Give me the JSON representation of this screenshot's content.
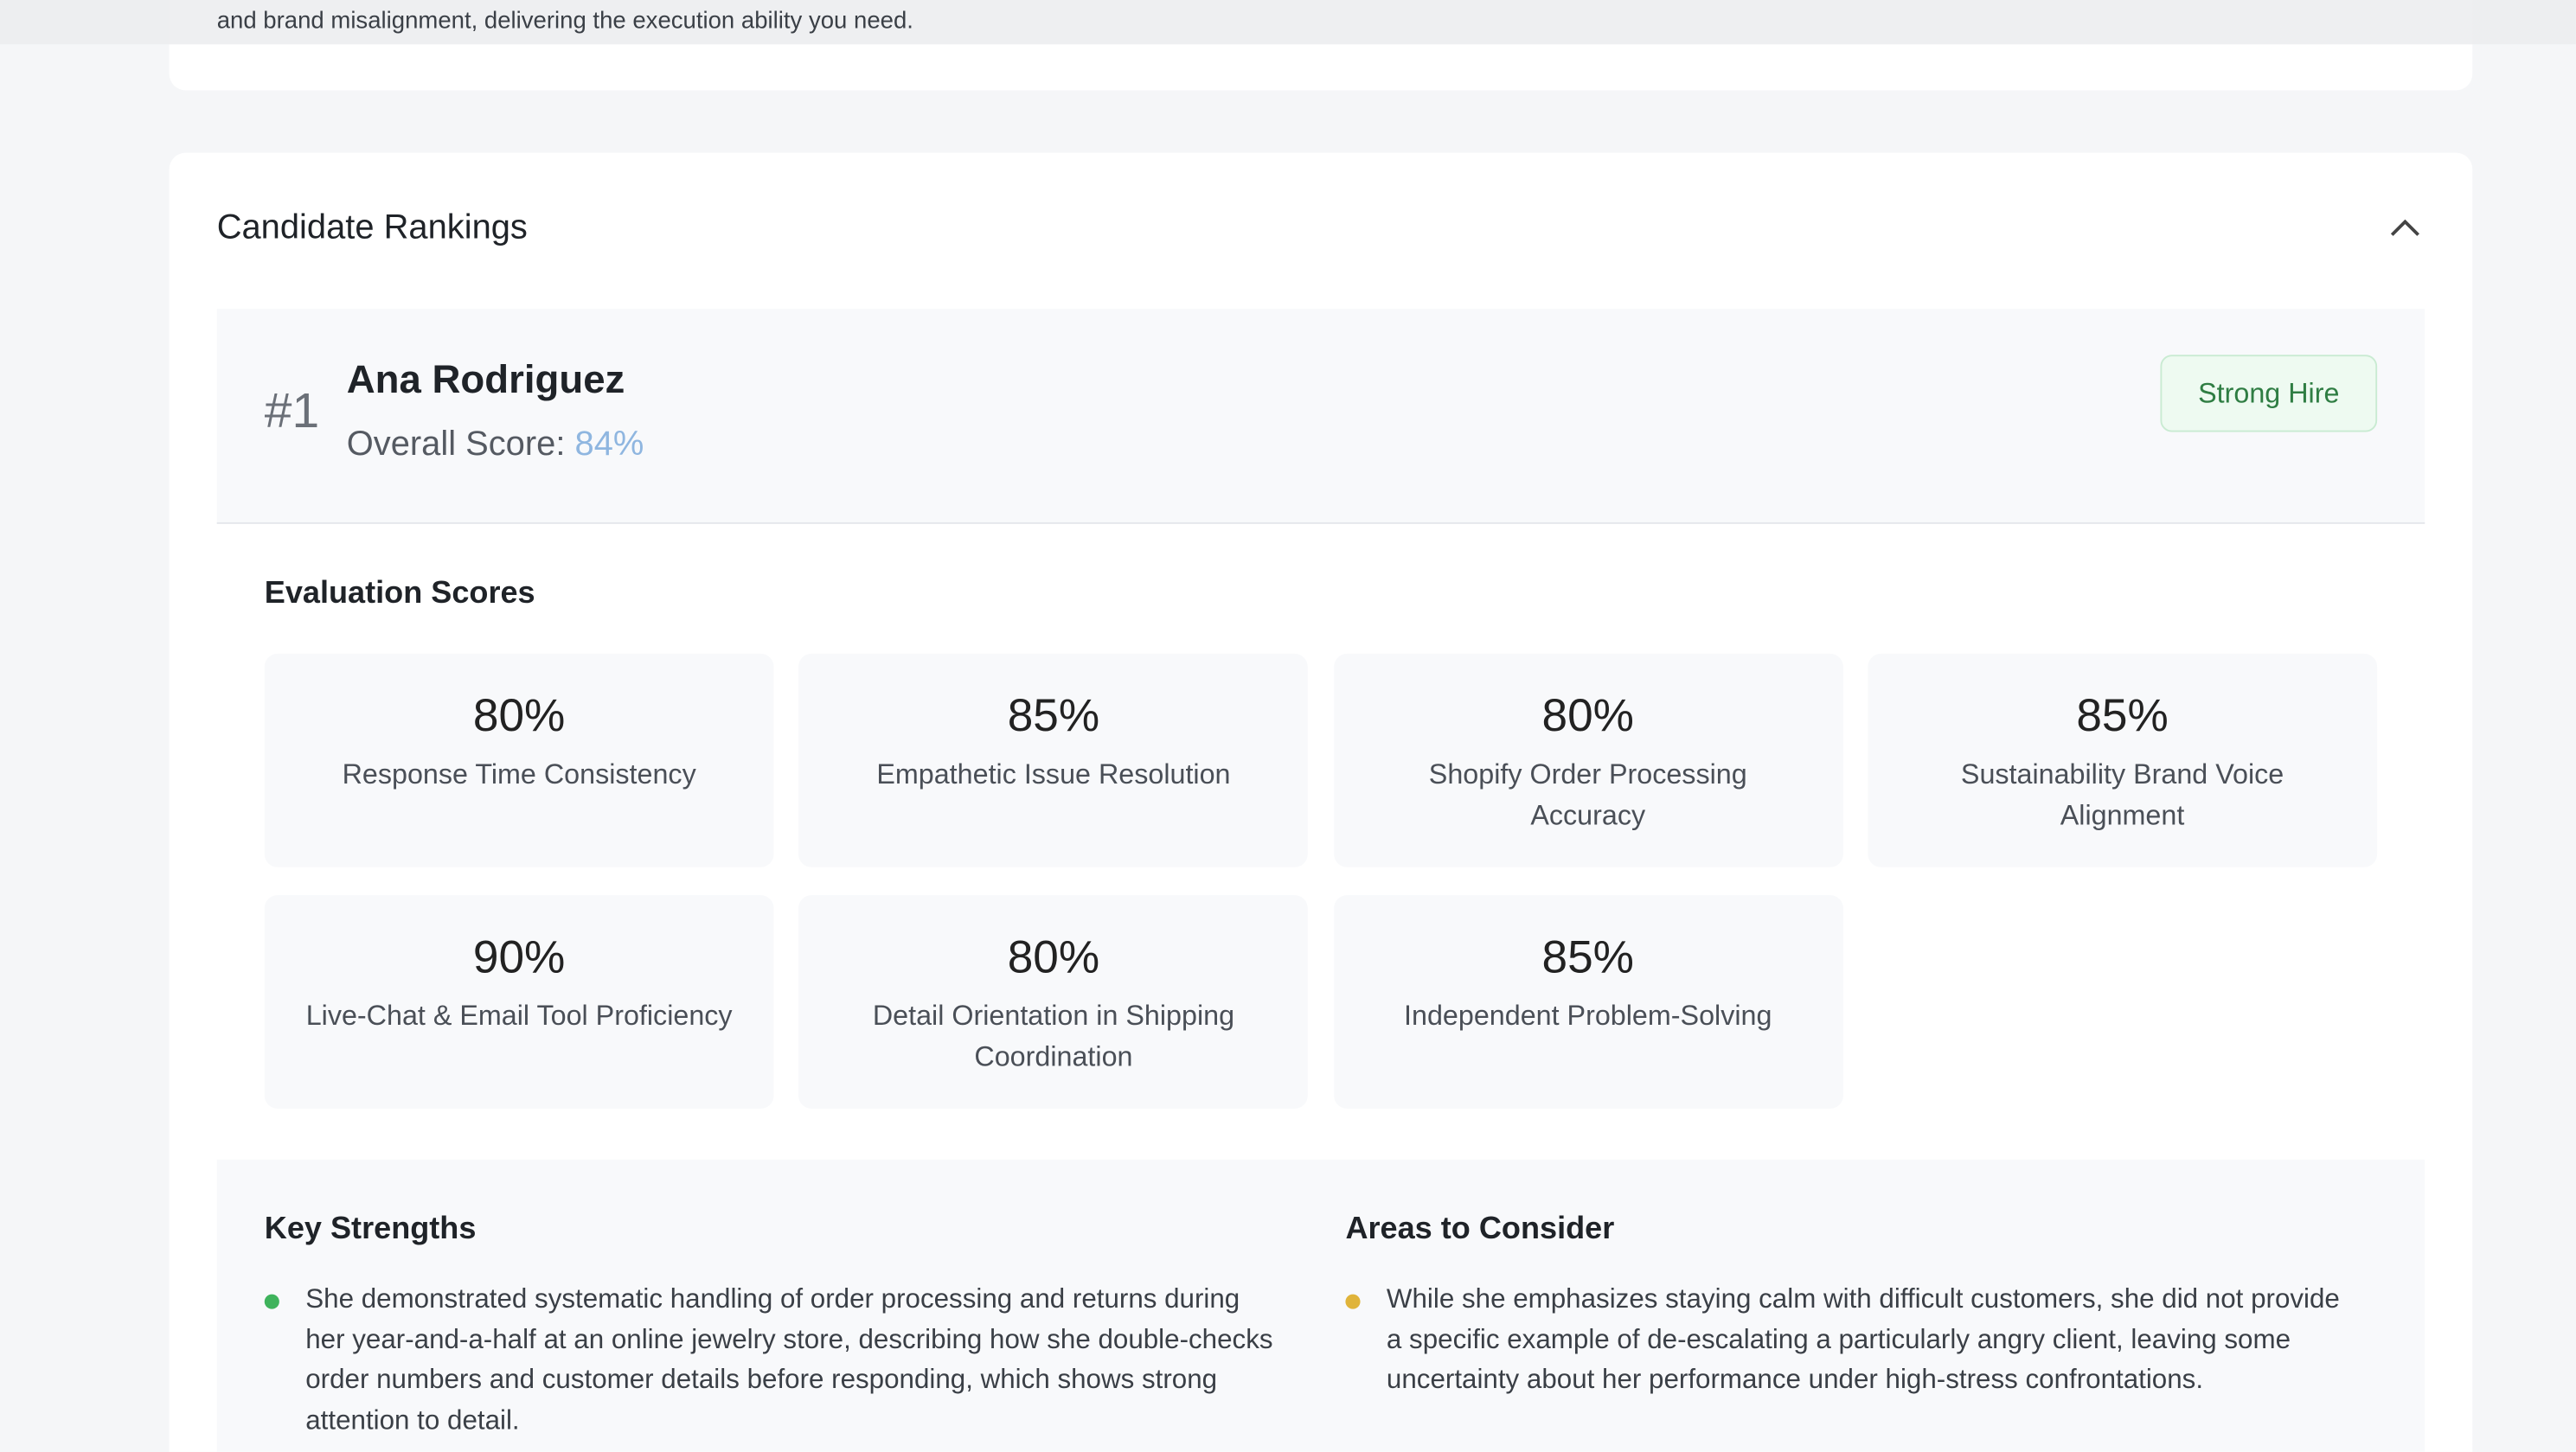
{
  "top_text": "and brand misalignment, delivering the execution ability you need.",
  "section_title": "Candidate Rankings",
  "candidate": {
    "rank": "#1",
    "name": "Ana Rodriguez",
    "score_label": "Overall Score:",
    "score": "84%",
    "badge": "Strong Hire"
  },
  "evaluation": {
    "title": "Evaluation Scores",
    "scores": [
      {
        "value": "80%",
        "label": "Response Time Consistency"
      },
      {
        "value": "85%",
        "label": "Empathetic Issue Resolution"
      },
      {
        "value": "80%",
        "label": "Shopify Order Processing Accuracy"
      },
      {
        "value": "85%",
        "label": "Sustainability Brand Voice Alignment"
      },
      {
        "value": "90%",
        "label": "Live-Chat & Email Tool Proficiency"
      },
      {
        "value": "80%",
        "label": "Detail Orientation in Shipping Coordination"
      },
      {
        "value": "85%",
        "label": "Independent Problem-Solving"
      }
    ]
  },
  "strengths": {
    "title": "Key Strengths",
    "items": [
      "She demonstrated systematic handling of order processing and returns during her year-and-a-half at an online jewelry store, describing how she double-checks order numbers and customer details before responding, which shows strong attention to detail."
    ]
  },
  "areas": {
    "title": "Areas to Consider",
    "items": [
      "While she emphasizes staying calm with difficult customers, she did not provide a specific example of de-escalating a particularly angry client, leaving some uncertainty about her performance under high-stress confrontations."
    ]
  }
}
